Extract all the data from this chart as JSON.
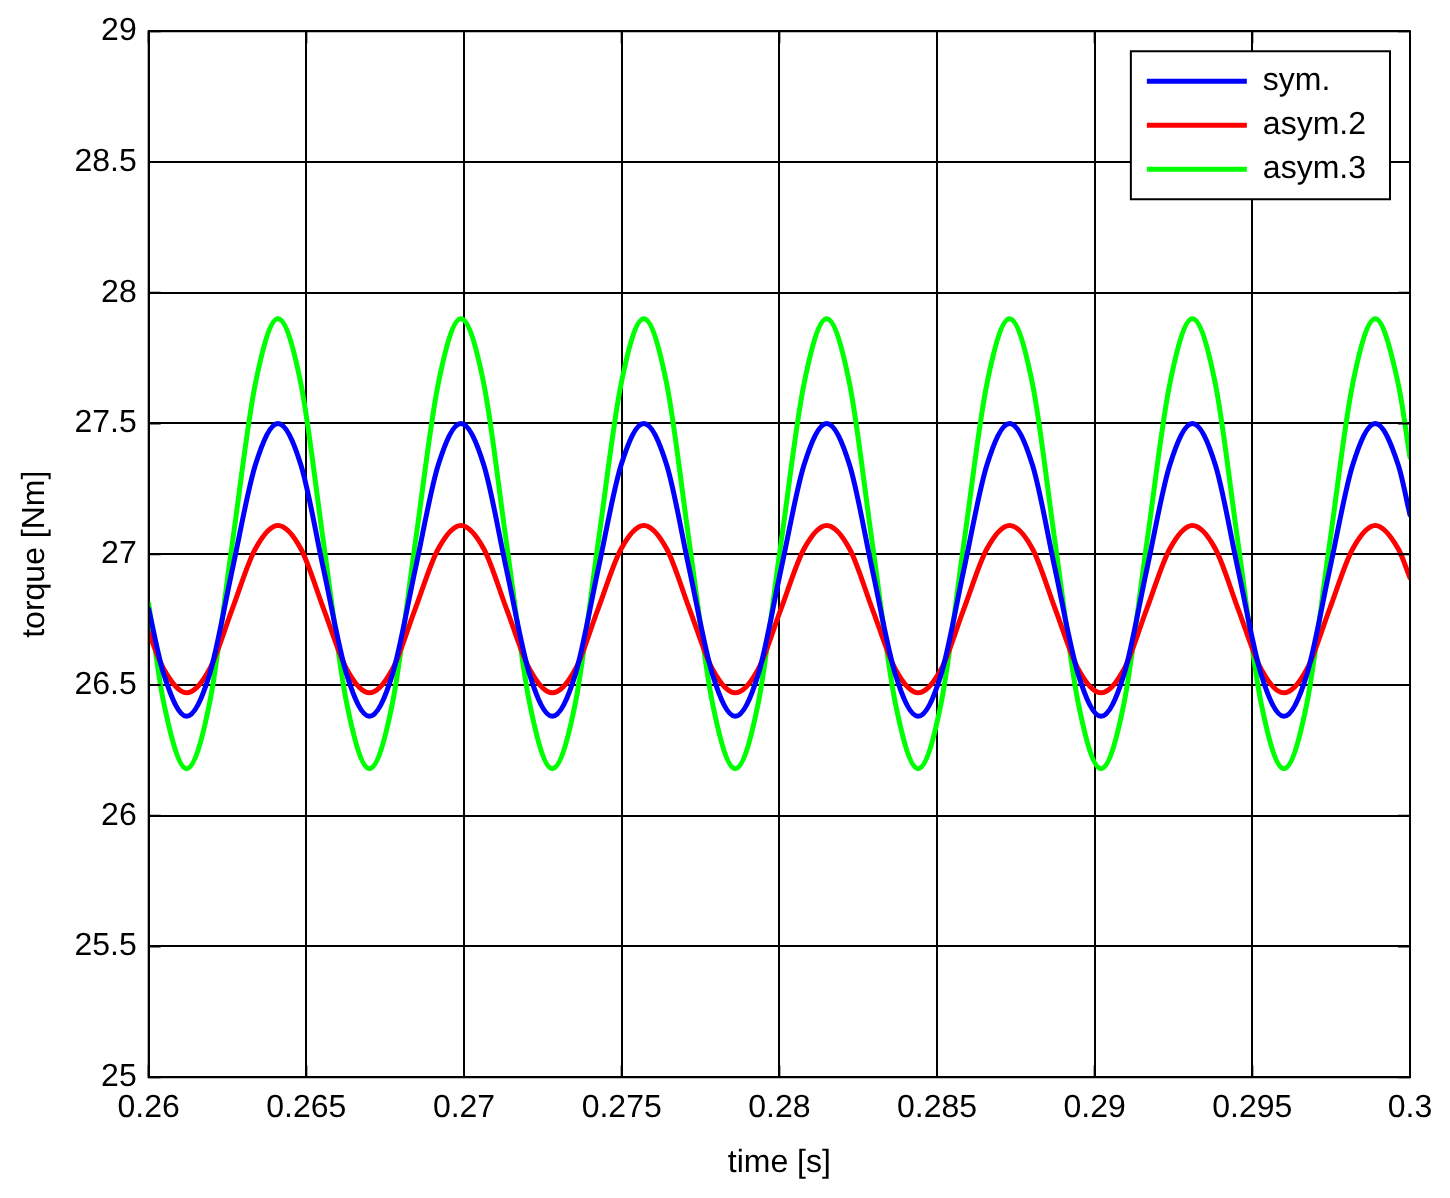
{
  "chart_data": {
    "type": "line",
    "xlabel": "time [s]",
    "ylabel": "torque [Nm]",
    "x": [
      0.26,
      0.26048,
      0.2612,
      0.26193,
      0.26265,
      0.26338,
      0.2641,
      0.26483,
      0.26555,
      0.26628,
      0.267,
      0.26773,
      0.26845,
      0.26918,
      0.2699,
      0.27063,
      0.27135,
      0.27208,
      0.2728,
      0.27353,
      0.27425,
      0.27498,
      0.2757,
      0.27643,
      0.27715,
      0.27788,
      0.2786,
      0.27933,
      0.28005,
      0.28078,
      0.2815,
      0.28223,
      0.28295,
      0.28368,
      0.2844,
      0.28513,
      0.28585,
      0.28658,
      0.2873,
      0.28803,
      0.28875,
      0.28948,
      0.2902,
      0.29093,
      0.29165,
      0.29238,
      0.2931,
      0.29383,
      0.29455,
      0.29528,
      0.296,
      0.29673,
      0.29745,
      0.29818,
      0.2989,
      0.29963,
      0.3
    ],
    "series": [
      {
        "name": "sym.",
        "color": "#0000ff",
        "values": [
          26.79,
          26.54,
          26.38,
          26.54,
          26.94,
          27.34,
          27.5,
          27.34,
          26.94,
          26.54,
          26.38,
          26.54,
          26.94,
          27.34,
          27.5,
          27.34,
          26.94,
          26.54,
          26.38,
          26.54,
          26.94,
          27.34,
          27.5,
          27.34,
          26.94,
          26.54,
          26.38,
          26.54,
          26.94,
          27.34,
          27.5,
          27.34,
          26.94,
          26.54,
          26.38,
          26.54,
          26.94,
          27.34,
          27.5,
          27.34,
          26.94,
          26.54,
          26.38,
          26.54,
          26.94,
          27.34,
          27.5,
          27.34,
          26.94,
          26.54,
          26.38,
          26.54,
          26.94,
          27.34,
          27.5,
          27.34,
          27.15
        ]
      },
      {
        "name": "asym.2",
        "color": "#ff0000",
        "values": [
          26.7,
          26.56,
          26.47,
          26.56,
          26.79,
          27.02,
          27.11,
          27.02,
          26.79,
          26.56,
          26.47,
          26.56,
          26.79,
          27.02,
          27.11,
          27.02,
          26.79,
          26.56,
          26.47,
          26.56,
          26.79,
          27.02,
          27.11,
          27.02,
          26.79,
          26.56,
          26.47,
          26.56,
          26.79,
          27.02,
          27.11,
          27.02,
          26.79,
          26.56,
          26.47,
          26.56,
          26.79,
          27.02,
          27.11,
          27.02,
          26.79,
          26.56,
          26.47,
          26.56,
          26.79,
          27.02,
          27.11,
          27.02,
          26.79,
          26.56,
          26.47,
          26.56,
          26.79,
          27.02,
          27.11,
          27.02,
          26.91
        ]
      },
      {
        "name": "asym.3",
        "color": "#00ff00",
        "values": [
          26.81,
          26.43,
          26.18,
          26.43,
          27.04,
          27.65,
          27.9,
          27.65,
          27.04,
          26.43,
          26.18,
          26.43,
          27.04,
          27.65,
          27.9,
          27.65,
          27.04,
          26.43,
          26.18,
          26.43,
          27.04,
          27.65,
          27.9,
          27.65,
          27.04,
          26.43,
          26.18,
          26.43,
          27.04,
          27.65,
          27.9,
          27.65,
          27.04,
          26.43,
          26.18,
          26.43,
          27.04,
          27.65,
          27.9,
          27.65,
          27.04,
          26.43,
          26.18,
          26.43,
          27.04,
          27.65,
          27.9,
          27.65,
          27.04,
          26.43,
          26.18,
          26.43,
          27.04,
          27.65,
          27.9,
          27.65,
          27.37
        ]
      }
    ],
    "xlim": [
      0.26,
      0.3
    ],
    "xticks": [
      0.26,
      0.265,
      0.27,
      0.275,
      0.28,
      0.285,
      0.29,
      0.295,
      0.3
    ],
    "ylim": [
      25,
      29
    ],
    "yticks": [
      25,
      25.5,
      26,
      26.5,
      27,
      27.5,
      28,
      28.5,
      29
    ],
    "grid": true,
    "legend": "top right",
    "marker": "none",
    "line_style": "solid"
  }
}
